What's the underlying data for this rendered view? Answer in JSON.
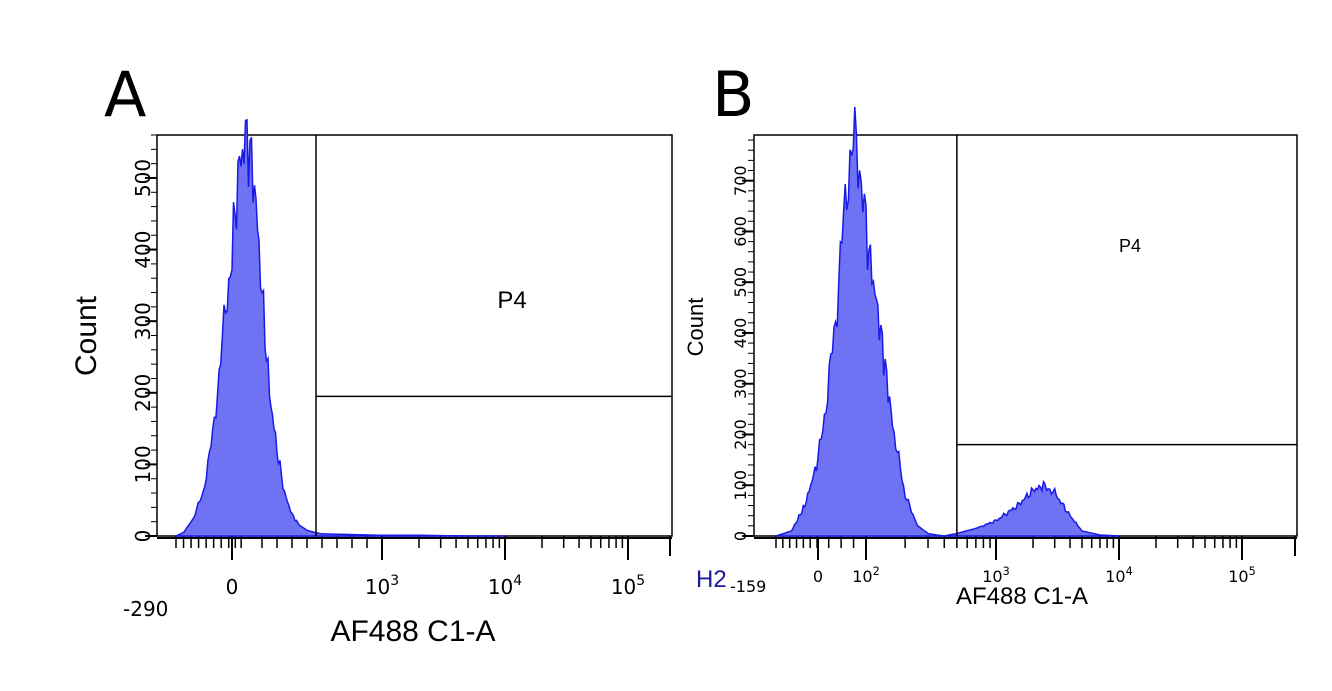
{
  "panels": [
    {
      "letter": "A"
    },
    {
      "letter": "B",
      "corner_label": "H2"
    }
  ],
  "chart_data": [
    {
      "type": "area",
      "panel": "A",
      "xlabel": "AF488 C1-A",
      "ylabel": "Count",
      "x_scale": "biexponential",
      "x_min_label": "-290",
      "x_tick_labels": [
        "0",
        "10^3",
        "10^4",
        "10^5"
      ],
      "y_ticks": [
        0,
        100,
        200,
        300,
        400,
        500
      ],
      "ylim": [
        0,
        560
      ],
      "fill_color": "#6f72f2",
      "line_color": "#1a1ae6",
      "gate": {
        "name": "P4",
        "x_start": 560,
        "count_level": 195
      },
      "series": [
        {
          "x": [
            -290,
            -250,
            -200,
            -150,
            -100,
            -50,
            0,
            50,
            100,
            150,
            200,
            250,
            300,
            350,
            400,
            450,
            500,
            550,
            600,
            800,
            1000,
            2000,
            5000,
            10000
          ],
          "y": [
            0,
            5,
            25,
            60,
            140,
            270,
            400,
            520,
            560,
            490,
            340,
            200,
            120,
            60,
            30,
            15,
            8,
            5,
            3,
            2,
            1,
            1,
            0,
            0
          ]
        }
      ]
    },
    {
      "type": "area",
      "panel": "B",
      "xlabel": "AF488 C1-A",
      "ylabel": "Count",
      "x_scale": "biexponential",
      "x_min_label": "-159",
      "x_tick_labels": [
        "0",
        "10^2",
        "10^3",
        "10^4",
        "10^5"
      ],
      "y_ticks": [
        0,
        100,
        200,
        300,
        400,
        500,
        600,
        700
      ],
      "ylim": [
        0,
        790
      ],
      "fill_color": "#6f72f2",
      "line_color": "#1a1ae6",
      "gate": {
        "name": "P4",
        "x_start": 500,
        "count_level": 180
      },
      "series": [
        {
          "x": [
            -159,
            -100,
            -50,
            0,
            20,
            40,
            60,
            80,
            100,
            130,
            160,
            200,
            250,
            300,
            350,
            400,
            500,
            700,
            1000,
            1500,
            2000,
            2500,
            3000,
            4000,
            5000,
            7000,
            10000
          ],
          "y": [
            0,
            10,
            60,
            150,
            280,
            460,
            700,
            790,
            600,
            400,
            220,
            80,
            20,
            5,
            2,
            0,
            5,
            15,
            30,
            60,
            90,
            100,
            85,
            40,
            10,
            2,
            0
          ]
        }
      ]
    }
  ]
}
